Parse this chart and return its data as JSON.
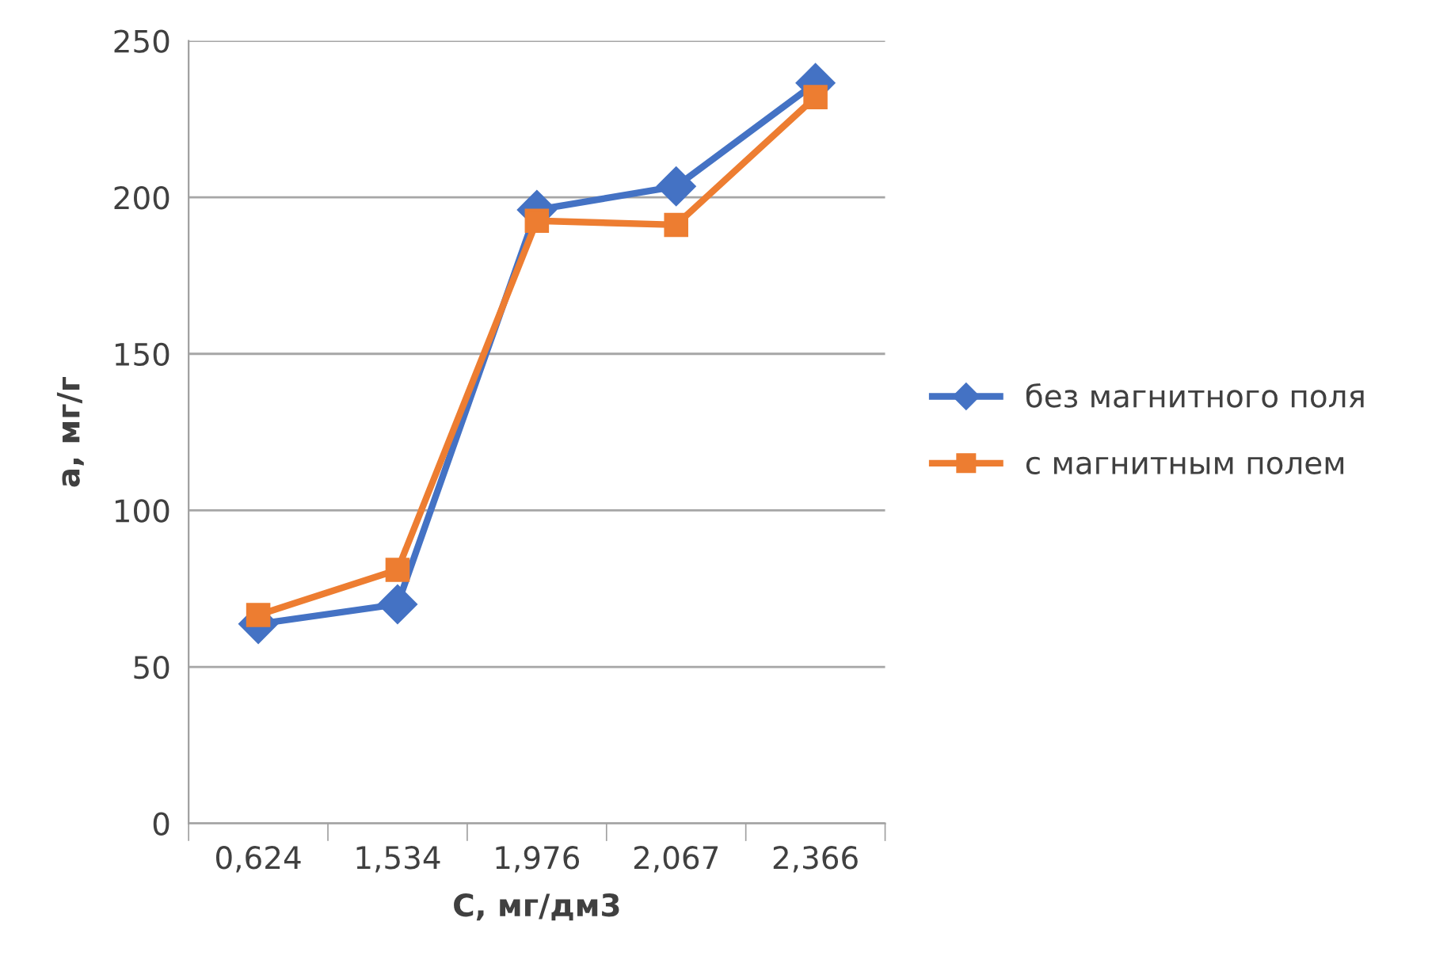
{
  "chart_data": {
    "type": "line",
    "xlabel": "С, мг/дм3",
    "ylabel": "а, мг/г",
    "categories": [
      "0,624",
      "1,534",
      "1,976",
      "2,067",
      "2,366"
    ],
    "series": [
      {
        "name": "без магнитного поля",
        "color": "#4472c4",
        "marker": "diamond",
        "values": [
          63.7,
          70,
          196,
          203.5,
          236.5
        ]
      },
      {
        "name": "с магнитным полем",
        "color": "#ed7d31",
        "marker": "square",
        "values": [
          66.6,
          81,
          192.5,
          191.2,
          232
        ]
      }
    ],
    "ylim": [
      0,
      250
    ],
    "yticks": [
      0,
      50,
      100,
      150,
      200,
      250
    ],
    "grid": "y",
    "legend": "right",
    "line_style": "solid"
  }
}
